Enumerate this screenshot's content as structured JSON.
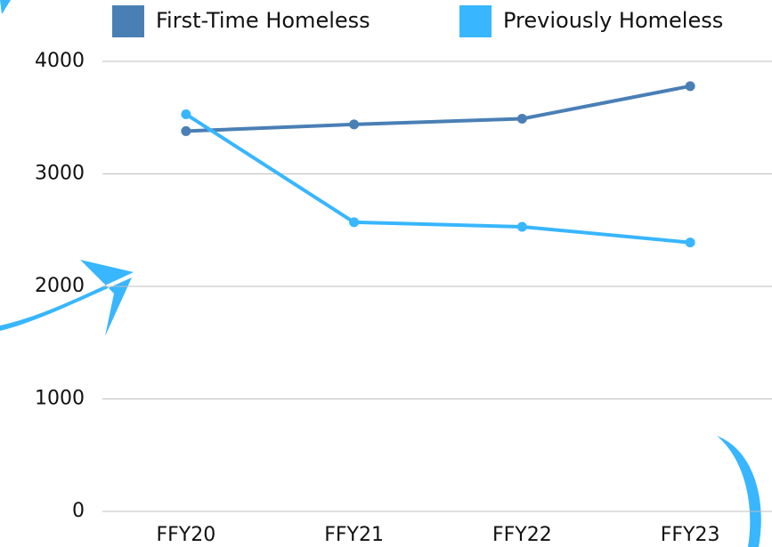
{
  "chart_data": {
    "type": "line",
    "categories": [
      "FFY20",
      "FFY21",
      "FFY22",
      "FFY23"
    ],
    "series": [
      {
        "name": "First-Time Homeless",
        "color": "#4a7fb5",
        "values": [
          3380,
          3440,
          3490,
          3780
        ]
      },
      {
        "name": "Previously Homeless",
        "color": "#38b6ff",
        "values": [
          3530,
          2570,
          2530,
          2390
        ]
      }
    ],
    "ylim": [
      0,
      4000
    ],
    "yticks": [
      0,
      1000,
      2000,
      3000,
      4000
    ],
    "grid": true
  }
}
